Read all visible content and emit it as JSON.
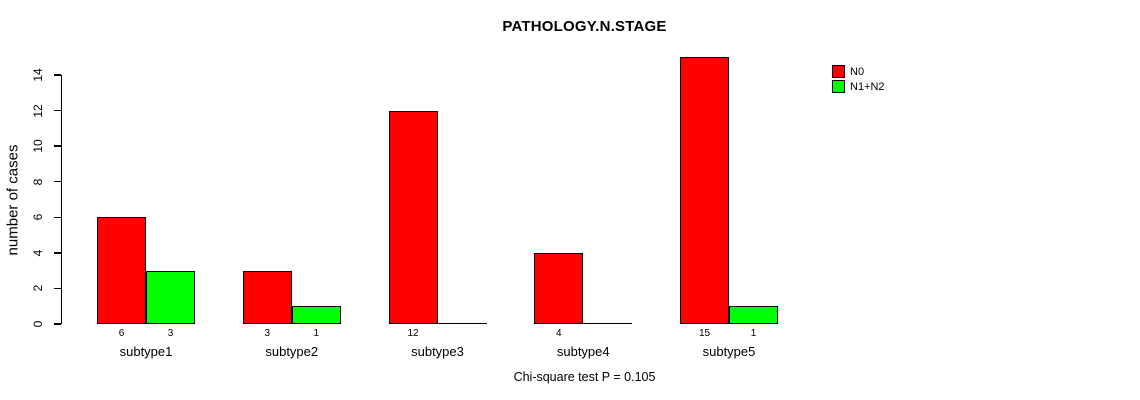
{
  "chart_data": {
    "type": "bar",
    "title": "PATHOLOGY.N.STAGE",
    "ylabel": "number of cases",
    "xlabel": "",
    "footnote": "Chi-square test P = 0.105",
    "categories": [
      "subtype1",
      "subtype2",
      "subtype3",
      "subtype4",
      "subtype5"
    ],
    "series": [
      {
        "name": "N0",
        "color": "#FF0000",
        "values": [
          6,
          3,
          12,
          4,
          15
        ]
      },
      {
        "name": "N1+N2",
        "color": "#00FF00",
        "values": [
          3,
          1,
          0,
          0,
          1
        ]
      }
    ],
    "yticks": [
      0,
      2,
      4,
      6,
      8,
      10,
      12,
      14
    ],
    "ylim": [
      0,
      14
    ],
    "grid": false,
    "legend_position": "top-right",
    "value_labels": "shown under each bar, omitted when value is 0"
  },
  "colors": {
    "background": "#FFFFFF",
    "axis": "#000000",
    "text": "#000000",
    "bar_border": "#000000"
  }
}
